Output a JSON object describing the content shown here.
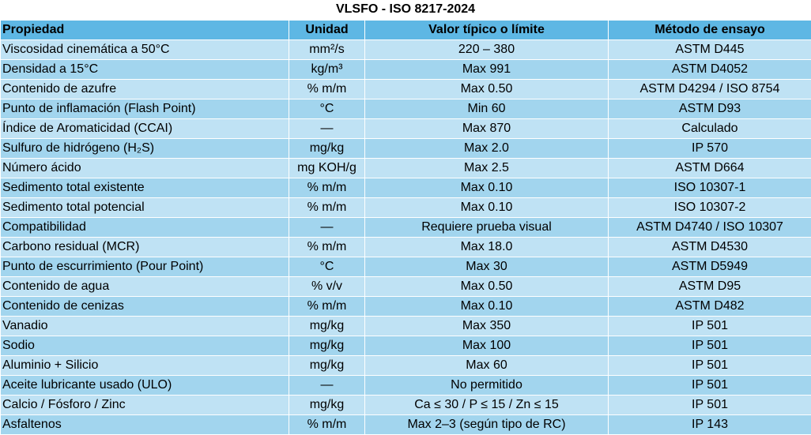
{
  "title": "VLSFO - ISO 8217-2024",
  "headers": [
    "Propiedad",
    "Unidad",
    "Valor típico o límite",
    "Método de ensayo"
  ],
  "rows": [
    [
      "Viscosidad cinemática a 50°C",
      "mm²/s",
      "220 – 380",
      "ASTM D445"
    ],
    [
      "Densidad a 15°C",
      "kg/m³",
      "Max 991",
      "ASTM D4052"
    ],
    [
      "Contenido de azufre",
      "% m/m",
      "Max 0.50",
      "ASTM D4294 / ISO 8754"
    ],
    [
      "Punto de inflamación (Flash Point)",
      "°C",
      "Min 60",
      "ASTM D93"
    ],
    [
      "Índice de Aromaticidad (CCAI)",
      "—",
      "Max 870",
      "Calculado"
    ],
    [
      "Sulfuro de hidrógeno (H₂S)",
      "mg/kg",
      "Max 2.0",
      "IP 570"
    ],
    [
      "Número ácido",
      "mg KOH/g",
      "Max 2.5",
      "ASTM D664"
    ],
    [
      "Sedimento total existente",
      "% m/m",
      "Max 0.10",
      "ISO 10307-1"
    ],
    [
      "Sedimento total potencial",
      "% m/m",
      "Max 0.10",
      "ISO 10307-2"
    ],
    [
      "Compatibilidad",
      "—",
      "Requiere prueba visual",
      "ASTM D4740 / ISO 10307"
    ],
    [
      "Carbono residual (MCR)",
      "% m/m",
      "Max 18.0",
      "ASTM D4530"
    ],
    [
      "Punto de escurrimiento (Pour Point)",
      "°C",
      "Max 30",
      "ASTM D5949"
    ],
    [
      "Contenido de agua",
      "% v/v",
      "Max 0.50",
      "ASTM D95"
    ],
    [
      "Contenido de cenizas",
      "% m/m",
      "Max 0.10",
      "ASTM D482"
    ],
    [
      "Vanadio",
      "mg/kg",
      "Max 350",
      "IP 501"
    ],
    [
      "Sodio",
      "mg/kg",
      "Max 100",
      "IP 501"
    ],
    [
      "Aluminio + Silicio",
      "mg/kg",
      "Max 60",
      "IP 501"
    ],
    [
      "Aceite lubricante usado (ULO)",
      "—",
      "No permitido",
      "IP 501"
    ],
    [
      "Calcio / Fósforo / Zinc",
      "mg/kg",
      "Ca ≤ 30 / P ≤ 15 / Zn ≤ 15",
      "IP 501"
    ],
    [
      "Asfaltenos",
      "% m/m",
      "Max 2–3 (según tipo de RC)",
      "IP 143"
    ]
  ],
  "colors": {
    "header_bg": "#5eb7e4",
    "row_light": "#bfe2f4",
    "row_dark": "#a2d5ee"
  }
}
